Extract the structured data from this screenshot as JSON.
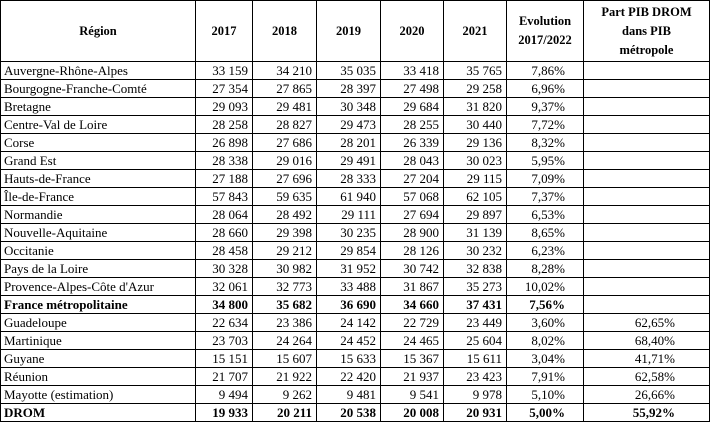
{
  "table": {
    "header": [
      "Région",
      "2017",
      "2018",
      "2019",
      "2020",
      "2021",
      "Evolution\n2017/2022",
      "Part PIB DROM\ndans PIB\nmétropole"
    ],
    "rows": [
      [
        "Auvergne-Rhône-Alpes",
        "33 159",
        "34 210",
        "35 035",
        "33 418",
        "35 765",
        "7,86%"
      ],
      [
        "Bourgogne-Franche-Comté",
        "27 354",
        "27 865",
        "28 397",
        "27 498",
        "29 258",
        "6,96%"
      ],
      [
        "Bretagne",
        "29 093",
        "29 481",
        "30 348",
        "29 684",
        "31 820",
        "9,37%"
      ],
      [
        "Centre-Val de Loire",
        "28 258",
        "28 827",
        "29 473",
        "28 255",
        "30 440",
        "7,72%"
      ],
      [
        "Corse",
        "26 898",
        "27 686",
        "28 201",
        "26 339",
        "29 136",
        "8,32%"
      ],
      [
        "Grand Est",
        "28 338",
        "29 016",
        "29 491",
        "28 043",
        "30 023",
        "5,95%"
      ],
      [
        "Hauts-de-France",
        "27 188",
        "27 696",
        "28 333",
        "27 204",
        "29 115",
        "7,09%"
      ],
      [
        "Île-de-France",
        "57 843",
        "59 635",
        "61 940",
        "57 068",
        "62 105",
        "7,37%"
      ],
      [
        "Normandie",
        "28 064",
        "28 492",
        "29 111",
        "27 694",
        "29 897",
        "6,53%"
      ],
      [
        "Nouvelle-Aquitaine",
        "28 660",
        "29 398",
        "30 235",
        "28 900",
        "31 139",
        "8,65%"
      ],
      [
        "Occitanie",
        "28 458",
        "29 212",
        "29 854",
        "28 126",
        "30 232",
        "6,23%"
      ],
      [
        "Pays de la Loire",
        "30 328",
        "30 982",
        "31 952",
        "30 742",
        "32 838",
        "8,28%"
      ],
      [
        "Provence-Alpes-Côte d'Azur",
        "32 061",
        "32 773",
        "33 488",
        "31 867",
        "35 273",
        "10,02%"
      ],
      [
        "France métropolitaine",
        "34 800",
        "35 682",
        "36 690",
        "34 660",
        "37 431",
        "7,56%"
      ],
      [
        "Guadeloupe",
        "22 634",
        "23 386",
        "24 142",
        "22 729",
        "23 449",
        "3,60%",
        "62,65%"
      ],
      [
        "Martinique",
        "23 703",
        "24 264",
        "24 452",
        "24 465",
        "25 604",
        "8,02%",
        "68,40%"
      ],
      [
        "Guyane",
        "15 151",
        "15 607",
        "15 633",
        "15 367",
        "15 611",
        "3,04%",
        "41,71%"
      ],
      [
        "Réunion",
        "21 707",
        "21 922",
        "22 420",
        "21 937",
        "23 423",
        "7,91%",
        "62,58%"
      ],
      [
        "Mayotte (estimation)",
        "9 494",
        "9 262",
        "9 481",
        "9 541",
        "9 978",
        "5,10%",
        "26,66%"
      ],
      [
        "DROM",
        "19 933",
        "20 211",
        "20 538",
        "20 008",
        "20 931",
        "5,00%",
        "55,92%"
      ]
    ]
  }
}
